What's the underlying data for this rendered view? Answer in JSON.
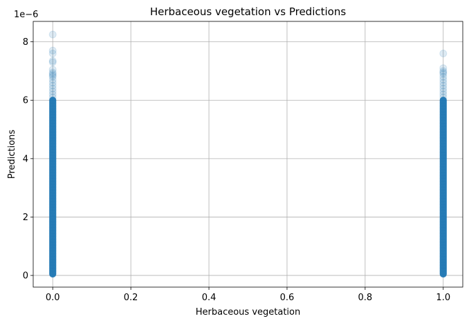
{
  "chart_data": {
    "type": "scatter",
    "title": "Herbaceous vegetation vs Predictions",
    "xlabel": "Herbaceous vegetation",
    "ylabel": "Predictions",
    "y_offset_label": "1e−6",
    "xlim": [
      -0.05,
      1.05
    ],
    "ylim": [
      -0.4,
      8.7
    ],
    "y_scale_factor": 1e-06,
    "x_ticks": [
      0.0,
      0.2,
      0.4,
      0.6,
      0.8,
      1.0
    ],
    "x_tick_labels": [
      "0.0",
      "0.2",
      "0.4",
      "0.6",
      "0.8",
      "1.0"
    ],
    "y_ticks": [
      0,
      2,
      4,
      6,
      8
    ],
    "y_tick_labels": [
      "0",
      "2",
      "4",
      "6",
      "8"
    ],
    "grid": true,
    "color": "#1f77b4",
    "marker_alpha": 0.15,
    "series": [
      {
        "x": 0.0,
        "dense_range_y": [
          0.05,
          6.0
        ],
        "sparse_points_y": [
          8.25,
          7.7,
          7.6,
          7.35,
          7.3,
          7.05,
          6.95,
          6.9,
          6.85,
          6.8,
          6.7,
          6.6,
          6.5,
          6.4,
          6.3,
          6.2,
          6.1
        ]
      },
      {
        "x": 1.0,
        "dense_range_y": [
          0.05,
          6.0
        ],
        "sparse_points_y": [
          7.6,
          7.1,
          7.0,
          6.95,
          6.9,
          6.8,
          6.7,
          6.6,
          6.5,
          6.4,
          6.3,
          6.2,
          6.1
        ]
      }
    ]
  }
}
